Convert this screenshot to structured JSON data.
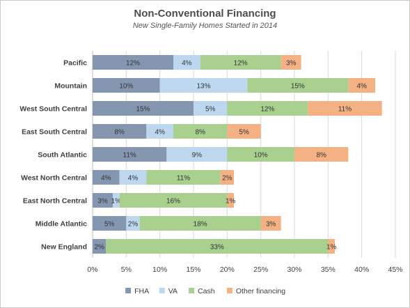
{
  "title": "Non-Conventional Financing",
  "subtitle": "New Single-Family Homes Started in 2014",
  "chart_data": {
    "type": "bar",
    "orientation": "horizontal",
    "stacked": true,
    "categories": [
      "Pacific",
      "Mountain",
      "West South Central",
      "East South Central",
      "South Atlantic",
      "West North Central",
      "East North Central",
      "Middle Atlantic",
      "New England"
    ],
    "series": [
      {
        "name": "FHA",
        "color": "#8496b0",
        "values": [
          12,
          10,
          15,
          8,
          11,
          4,
          3,
          5,
          2
        ],
        "labels": [
          "12%",
          "10%",
          "15%",
          "8%",
          "11%",
          "4%",
          "3%",
          "5%",
          "2%"
        ]
      },
      {
        "name": "VA",
        "color": "#bdd7ee",
        "values": [
          4,
          13,
          5,
          4,
          9,
          4,
          1,
          2,
          0
        ],
        "labels": [
          "4%",
          "13%",
          "5%",
          "4%",
          "9%",
          "4%",
          "1%",
          "2%",
          ""
        ]
      },
      {
        "name": "Cash",
        "color": "#a9d08e",
        "values": [
          12,
          15,
          12,
          8,
          10,
          11,
          16,
          18,
          33
        ],
        "labels": [
          "12%",
          "15%",
          "12%",
          "8%",
          "10%",
          "11%",
          "16%",
          "18%",
          "33%"
        ]
      },
      {
        "name": "Other financing",
        "color": "#f4b183",
        "values": [
          3,
          4,
          11,
          5,
          8,
          2,
          1,
          3,
          1
        ],
        "labels": [
          "3%",
          "4%",
          "11%",
          "5%",
          "8%",
          "2%",
          "1%",
          "3%",
          "1%"
        ]
      }
    ],
    "xlim": [
      0,
      45
    ],
    "xticks": [
      "0%",
      "5%",
      "10%",
      "15%",
      "20%",
      "25%",
      "30%",
      "35%",
      "40%",
      "45%"
    ],
    "grid": "vertical",
    "legend_position": "bottom"
  }
}
